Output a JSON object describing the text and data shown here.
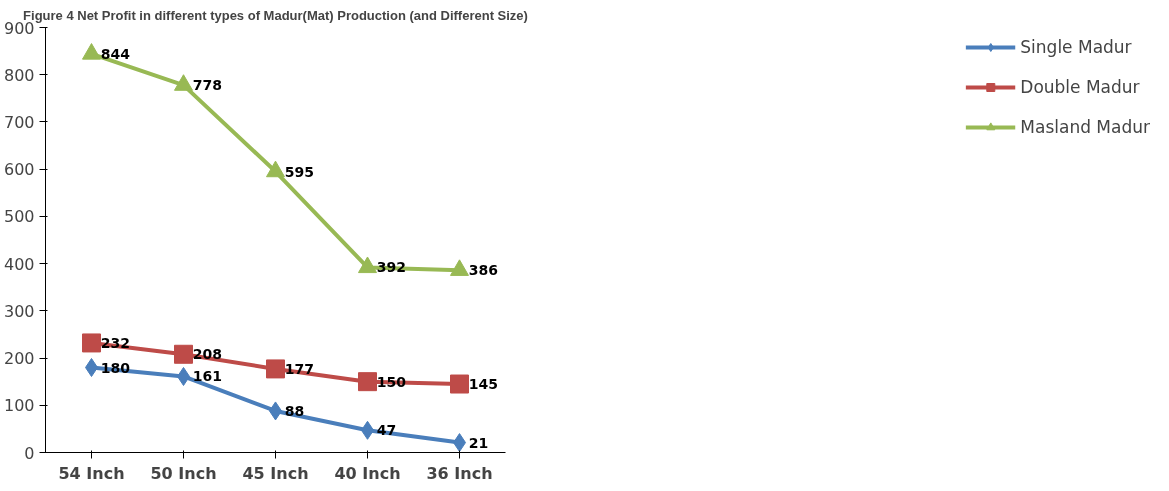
{
  "chart_data": {
    "type": "line",
    "title": "Figure 4 Net Profit in different types of Madur(Mat) Production (and Different Size)",
    "categories": [
      "54 Inch",
      "50 Inch",
      "45 Inch",
      "40 Inch",
      "36 Inch"
    ],
    "series": [
      {
        "name": "Single Madur",
        "color": "#4a7ebb",
        "marker": "diamond",
        "values": [
          180,
          161,
          88,
          47,
          21
        ]
      },
      {
        "name": "Double Madur",
        "color": "#be4b48",
        "marker": "square",
        "values": [
          232,
          208,
          177,
          150,
          145
        ]
      },
      {
        "name": "Masland Madur",
        "color": "#98b954",
        "marker": "triangle",
        "values": [
          844,
          778,
          595,
          392,
          386
        ]
      }
    ],
    "ylim": [
      0,
      900
    ],
    "yticks": [
      0,
      100,
      200,
      300,
      400,
      500,
      600,
      700,
      800,
      900
    ],
    "grid": false,
    "legend": "right",
    "data_labels": true
  }
}
